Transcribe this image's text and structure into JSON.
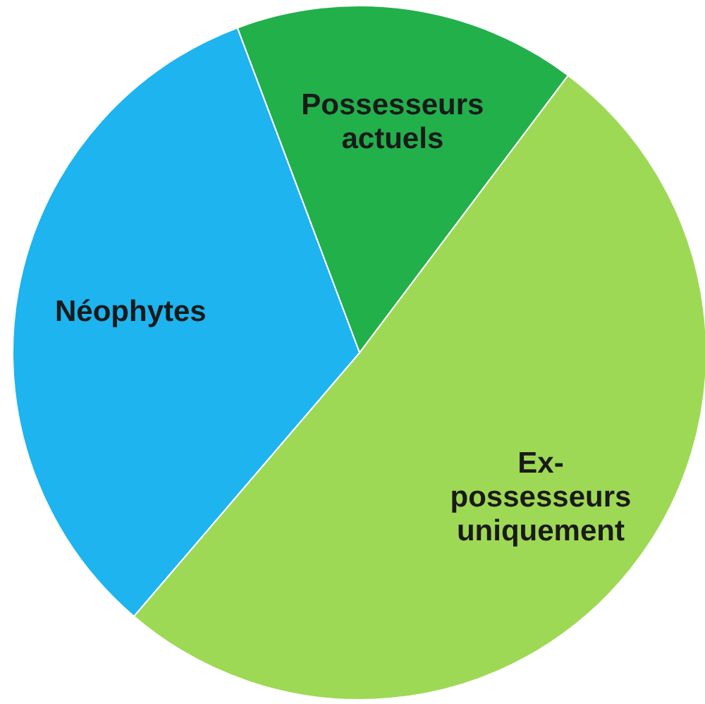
{
  "chart_data": {
    "type": "pie",
    "categories": [
      "Possesseurs actuels",
      "Ex-possesseurs uniquement",
      "Néophytes"
    ],
    "values": [
      16,
      51,
      33
    ],
    "colors": [
      "#22b04b",
      "#9ed955",
      "#1db4ef"
    ]
  }
}
